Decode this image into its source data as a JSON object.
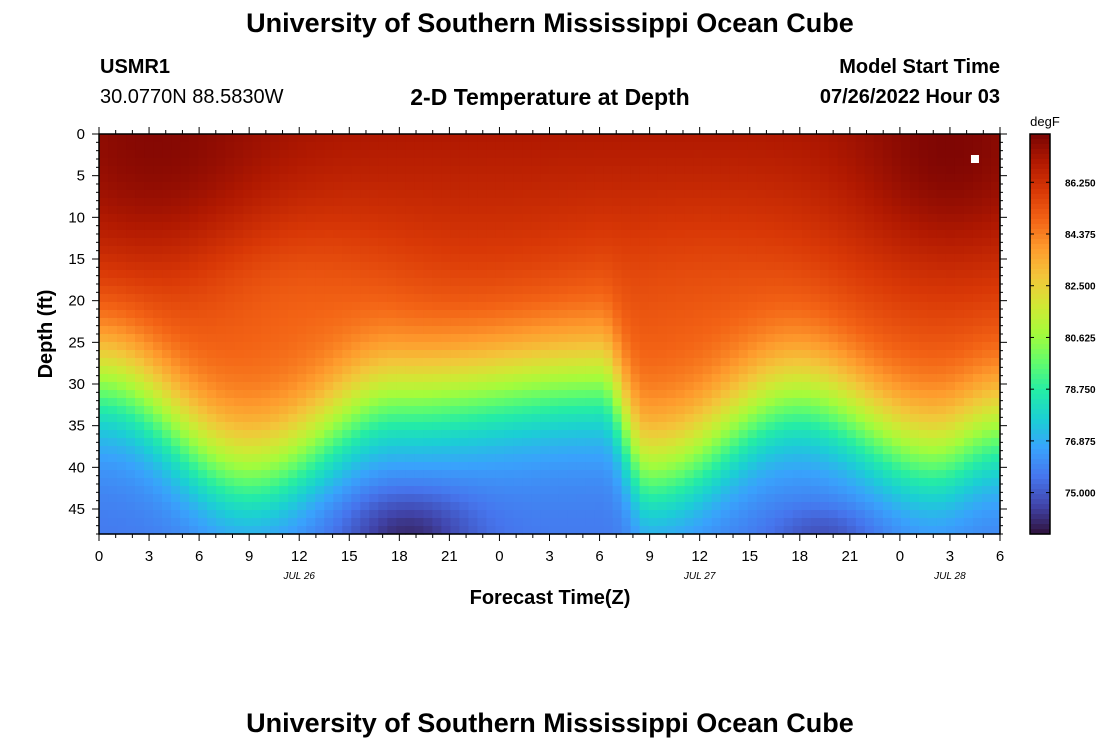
{
  "header": {
    "title": "University of Southern Mississippi Ocean Cube",
    "station": "USMR1",
    "coords": "30.0770N  88.5830W",
    "plot_title": "2-D Temperature at Depth",
    "model_label": "Model Start Time",
    "model_time": "07/26/2022 Hour 03"
  },
  "footer": {
    "title": "University of Southern Mississippi Ocean Cube"
  },
  "chart_data": {
    "type": "heatmap",
    "title": "2-D Temperature at Depth",
    "xlabel": "Forecast Time(Z)",
    "ylabel": "Depth (ft)",
    "x_tick_labels": [
      "0",
      "3",
      "6",
      "9",
      "12",
      "15",
      "18",
      "21",
      "0",
      "3",
      "6",
      "9",
      "12",
      "15",
      "18",
      "21",
      "0",
      "3",
      "6"
    ],
    "x_range_hours": [
      0,
      54
    ],
    "date_labels": [
      {
        "label": "JUL 26",
        "hour": 12
      },
      {
        "label": "JUL 27",
        "hour": 36
      },
      {
        "label": "JUL 28",
        "hour": 51
      }
    ],
    "y_tick_labels": [
      "0",
      "5",
      "10",
      "15",
      "20",
      "25",
      "30",
      "35",
      "40",
      "45"
    ],
    "y_range_ft": [
      0,
      48
    ],
    "colorbar": {
      "unit": "degF",
      "range": [
        73.5,
        88.0
      ],
      "ticks": [
        "86.250",
        "84.375",
        "82.500",
        "80.625",
        "78.750",
        "76.875",
        "75.000"
      ],
      "colors": [
        "#30123b",
        "#4145ab",
        "#4675ed",
        "#39a2fc",
        "#1bcfd4",
        "#24eca6",
        "#61fc6c",
        "#a4fc3b",
        "#d1e834",
        "#f3c63a",
        "#fe9b2d",
        "#f36315",
        "#d93806",
        "#b11901",
        "#7a0403"
      ]
    },
    "marker": {
      "hour": 52.5,
      "depth_ft": 3
    },
    "thermocline_depth_ft": [
      {
        "hour": 0,
        "depth": 30
      },
      {
        "hour": 9,
        "depth": 41
      },
      {
        "hour": 18,
        "depth": 32
      },
      {
        "hour": 30,
        "depth": 30
      },
      {
        "hour": 33,
        "depth": 41
      },
      {
        "hour": 42,
        "depth": 32
      },
      {
        "hour": 50,
        "depth": 39
      },
      {
        "hour": 54,
        "depth": 36
      }
    ],
    "surface_max_degF": 88,
    "bottom_min_degF": 73.5
  }
}
